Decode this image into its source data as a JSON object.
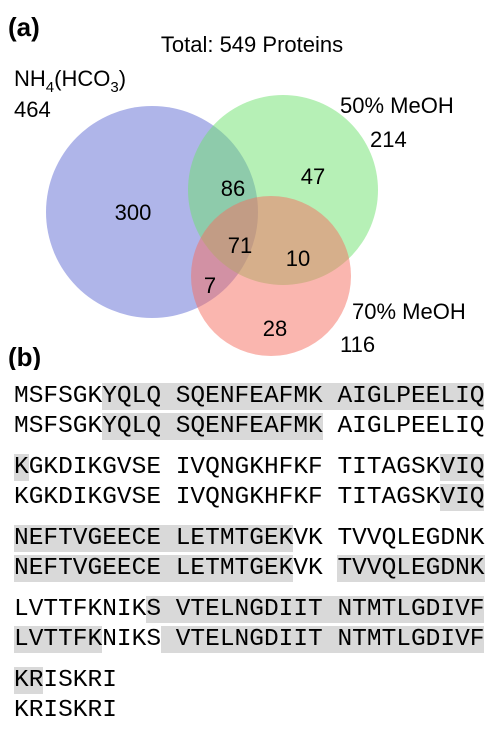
{
  "panel_a": {
    "label": "(a)",
    "title": "Total: 549 Proteins",
    "sets": [
      {
        "label_parts": [
          {
            "text": "NH"
          },
          {
            "text": "4",
            "sub": true
          },
          {
            "text": "(HCO"
          },
          {
            "text": "3",
            "sub": true
          },
          {
            "text": ")"
          }
        ],
        "total": "464"
      },
      {
        "label_parts": [
          {
            "text": "50% MeOH"
          }
        ],
        "total": "214"
      },
      {
        "label_parts": [
          {
            "text": "70% MeOH"
          }
        ],
        "total": "116"
      }
    ],
    "regions": [
      "300",
      "86",
      "47",
      "71",
      "10",
      "7",
      "28"
    ]
  },
  "panel_b": {
    "label": "(b)",
    "groups": [
      {
        "rows": [
          {
            "segments": [
              {
                "text": "MSFSGK",
                "highlight": false
              },
              {
                "text": "YQLQ SQENFEAFMK AIGLPEELIQ",
                "highlight": true
              }
            ]
          },
          {
            "segments": [
              {
                "text": "MSFSGK",
                "highlight": false
              },
              {
                "text": "YQLQ SQENFEAFMK",
                "highlight": true
              },
              {
                "text": " AIGLPEELIQ",
                "highlight": false
              }
            ]
          }
        ]
      },
      {
        "rows": [
          {
            "segments": [
              {
                "text": "K",
                "highlight": true
              },
              {
                "text": "GKDIKGVSE IVQNGKHFKF TITAGSK",
                "highlight": false
              },
              {
                "text": "VIQ",
                "highlight": true
              }
            ]
          },
          {
            "segments": [
              {
                "text": "KGKDIKGVSE IVQNGKHFKF TITAGSK",
                "highlight": false
              },
              {
                "text": "VIQ",
                "highlight": true
              }
            ]
          }
        ]
      },
      {
        "rows": [
          {
            "segments": [
              {
                "text": "NEFTVGEECE LETMTGEK",
                "highlight": true
              },
              {
                "text": "VK TVVQLEGDNK",
                "highlight": false
              }
            ]
          },
          {
            "segments": [
              {
                "text": "NEFTVGEECE LETMTGEK",
                "highlight": true
              },
              {
                "text": "VK ",
                "highlight": false
              },
              {
                "text": "TVVQLEGDNK",
                "highlight": true
              }
            ]
          }
        ]
      },
      {
        "rows": [
          {
            "segments": [
              {
                "text": "LVTTFKNIK",
                "highlight": false
              },
              {
                "text": "S VTELNGDIIT NTMTLGDIVF",
                "highlight": true
              }
            ]
          },
          {
            "segments": [
              {
                "text": "LVTTFK",
                "highlight": true
              },
              {
                "text": "NIKS",
                "highlight": false
              },
              {
                "text": " VTELNGDIIT NTMTLGDIVF",
                "highlight": true
              }
            ]
          }
        ]
      },
      {
        "rows": [
          {
            "segments": [
              {
                "text": "KR",
                "highlight": true
              },
              {
                "text": "ISKRI",
                "highlight": false
              }
            ]
          },
          {
            "segments": [
              {
                "text": "KRISKRI",
                "highlight": false
              }
            ]
          }
        ]
      }
    ]
  }
}
